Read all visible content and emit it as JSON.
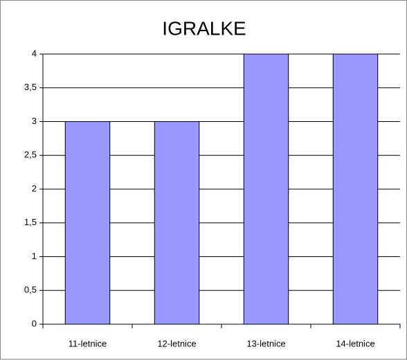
{
  "chart_data": {
    "type": "bar",
    "title": "IGRALKE",
    "categories": [
      "11-letnice",
      "12-letnice",
      "13-letnice",
      "14-letnice"
    ],
    "values": [
      3,
      3,
      4,
      4
    ],
    "color": "#9999ff",
    "ylim": [
      0,
      4
    ],
    "yticks": [
      0,
      {
        "value": 0.5,
        "label": "0,5"
      },
      1,
      {
        "value": 1.5,
        "label": "1,5"
      },
      2,
      {
        "value": 2.5,
        "label": "2,5"
      },
      3,
      {
        "value": 3.5,
        "label": "3,5"
      },
      4
    ],
    "grid": true
  }
}
